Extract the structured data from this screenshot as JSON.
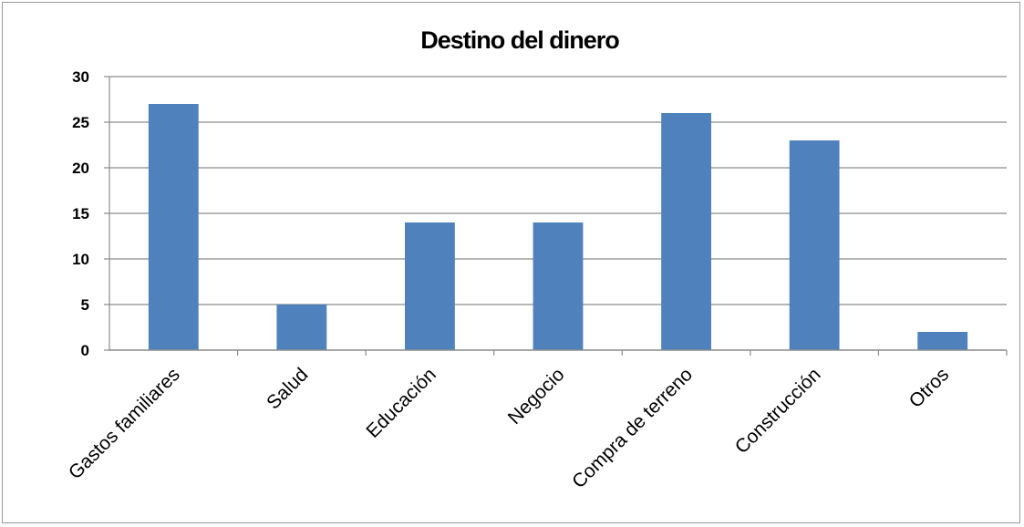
{
  "chart_data": {
    "type": "bar",
    "title": "Destino del dinero",
    "categories": [
      "Gastos familiares",
      "Salud",
      "Educación",
      "Negocio",
      "Compra de terreno",
      "Construcción",
      "Otros"
    ],
    "values": [
      27,
      5,
      14,
      14,
      26,
      23,
      2
    ],
    "ylim": [
      0,
      30
    ],
    "yticks": [
      "0",
      "5",
      "10",
      "15",
      "20",
      "25",
      "30"
    ],
    "xlabel": "",
    "ylabel": "",
    "grid": true,
    "legend": "none",
    "bar_color": "#4f81bd",
    "gridline_color": "#8c8c8c"
  }
}
